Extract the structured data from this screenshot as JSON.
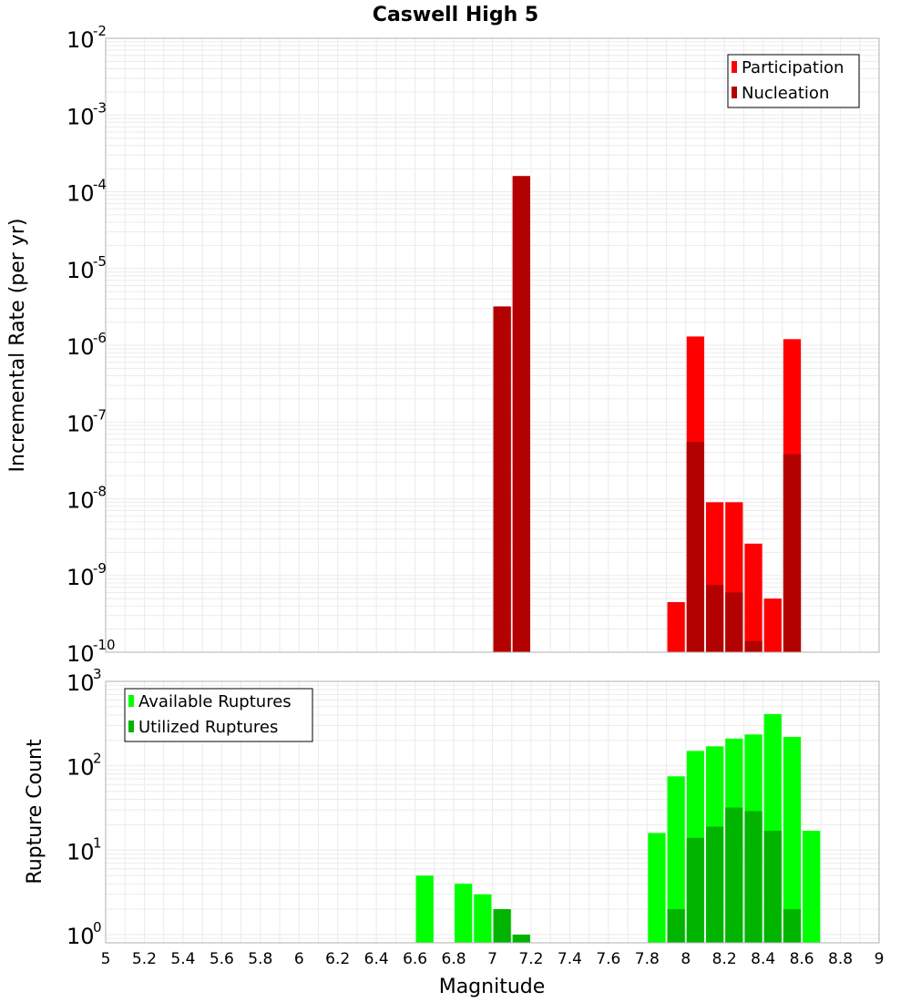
{
  "chart_data": [
    {
      "type": "bar",
      "title": "Caswell High 5",
      "ylabel": "Incremental Rate (per yr)",
      "xlabel": "Magnitude",
      "yscale": "log",
      "ylim": [
        1e-10,
        0.01
      ],
      "xlim": [
        5,
        9
      ],
      "bar_width": 0.1,
      "legend": [
        "Participation",
        "Nucleation"
      ],
      "legend_position": "top-right",
      "y_ticks": [
        {
          "base": "10",
          "exp": "-10",
          "value": 1e-10
        },
        {
          "base": "10",
          "exp": "-9",
          "value": 1e-09
        },
        {
          "base": "10",
          "exp": "-8",
          "value": 1e-08
        },
        {
          "base": "10",
          "exp": "-7",
          "value": 1e-07
        },
        {
          "base": "10",
          "exp": "-6",
          "value": 1e-06
        },
        {
          "base": "10",
          "exp": "-5",
          "value": 1e-05
        },
        {
          "base": "10",
          "exp": "-4",
          "value": 0.0001
        },
        {
          "base": "10",
          "exp": "-3",
          "value": 0.001
        },
        {
          "base": "10",
          "exp": "-2",
          "value": 0.01
        }
      ],
      "series": [
        {
          "name": "Participation",
          "color": "#ff0000",
          "x": [
            7.05,
            7.15,
            7.95,
            8.05,
            8.15,
            8.25,
            8.35,
            8.45,
            8.55
          ],
          "values": [
            3.2e-06,
            0.00016,
            4.5e-10,
            1.3e-06,
            9e-09,
            9e-09,
            2.6e-09,
            5e-10,
            1.2e-06
          ]
        },
        {
          "name": "Nucleation",
          "color": "#b30000",
          "x": [
            7.05,
            7.15,
            8.05,
            8.15,
            8.25,
            8.35,
            8.55
          ],
          "values": [
            3.2e-06,
            0.00016,
            5.5e-08,
            7.5e-10,
            6e-10,
            1.4e-10,
            3.8e-08
          ]
        }
      ]
    },
    {
      "type": "bar",
      "ylabel": "Rupture Count",
      "xlabel": "Magnitude",
      "yscale": "log",
      "ylim": [
        0.8,
        1000
      ],
      "xlim": [
        5,
        9
      ],
      "bar_width": 0.1,
      "legend": [
        "Available Ruptures",
        "Utilized Ruptures"
      ],
      "legend_position": "top-left",
      "y_ticks": [
        {
          "base": "10",
          "exp": "0",
          "value": 1
        },
        {
          "base": "10",
          "exp": "1",
          "value": 10
        },
        {
          "base": "10",
          "exp": "2",
          "value": 100
        },
        {
          "base": "10",
          "exp": "3",
          "value": 1000
        }
      ],
      "series": [
        {
          "name": "Available Ruptures",
          "color": "#00ff00",
          "x": [
            6.65,
            6.85,
            6.95,
            7.05,
            7.15,
            7.85,
            7.95,
            8.05,
            8.15,
            8.25,
            8.35,
            8.45,
            8.55,
            8.65
          ],
          "values": [
            5,
            4,
            3,
            2,
            1,
            16,
            75,
            150,
            170,
            210,
            235,
            410,
            220,
            17
          ]
        },
        {
          "name": "Utilized Ruptures",
          "color": "#00b400",
          "x": [
            7.05,
            7.15,
            7.95,
            8.05,
            8.15,
            8.25,
            8.35,
            8.45,
            8.55
          ],
          "values": [
            2,
            1,
            2,
            14,
            19,
            32,
            29,
            17,
            2
          ]
        }
      ]
    }
  ],
  "x_ticks": [
    "5",
    "5.2",
    "5.4",
    "5.6",
    "5.8",
    "6",
    "6.2",
    "6.4",
    "6.6",
    "6.8",
    "7",
    "7.2",
    "7.4",
    "7.6",
    "7.8",
    "8",
    "8.2",
    "8.4",
    "8.6",
    "8.8",
    "9"
  ],
  "colors": {
    "grid": "#ebebeb",
    "frame": "#b0b0b0"
  }
}
